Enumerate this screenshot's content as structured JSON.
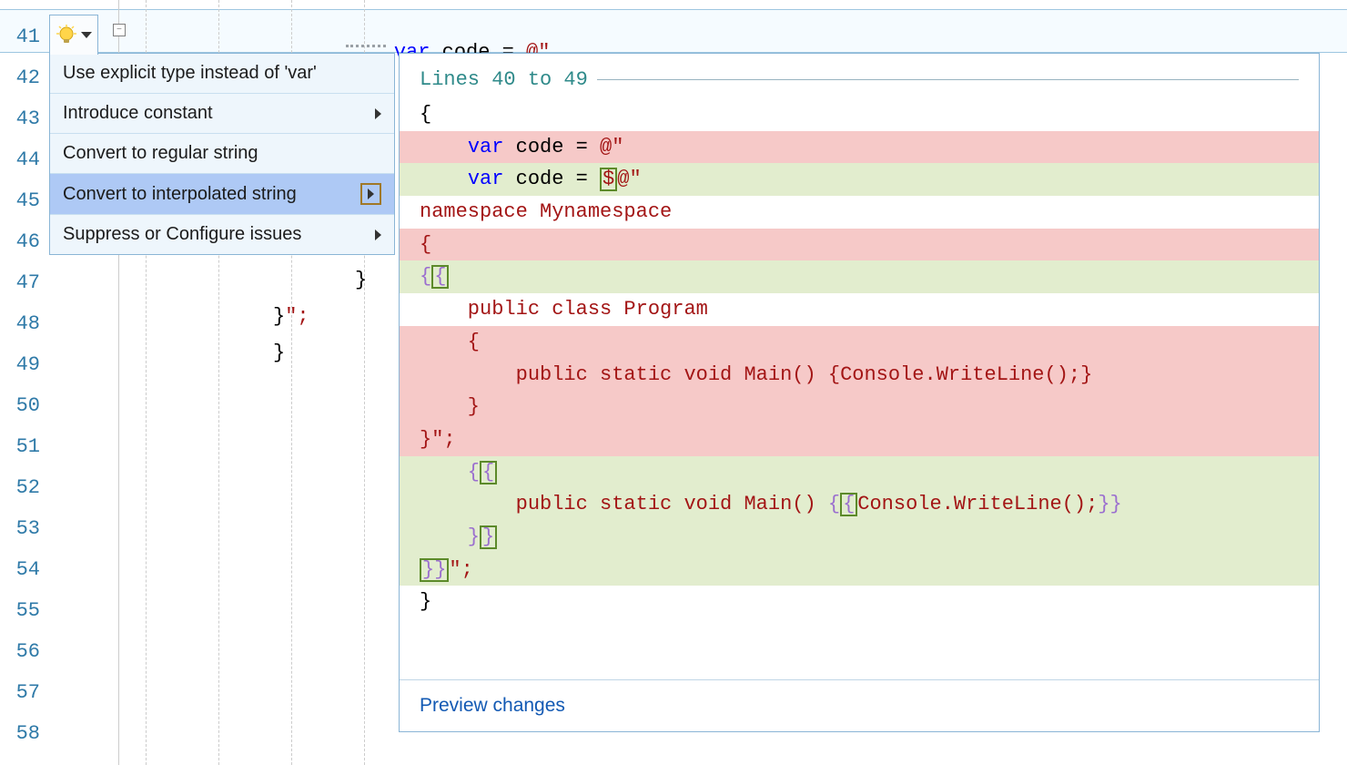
{
  "colors": {
    "line_number": "#2f7aa8",
    "keyword": "#0000ff",
    "string": "#a31515",
    "menu_bg": "#eef6fc",
    "menu_selected": "#aec9f5",
    "menu_border": "#8ab5d6",
    "diff_deleted_bg": "#f6c9c8",
    "diff_added_bg": "#e2edce",
    "added_box_border": "#5c8a2a",
    "brace_highlight": "#9b6fcf",
    "preview_link": "#1259b3",
    "header_teal": "#2f8a8a"
  },
  "editor": {
    "visible_lines": [
      41,
      42,
      43,
      44,
      45,
      46,
      47,
      48,
      49,
      50,
      51,
      52,
      53,
      54,
      55,
      56,
      57,
      58
    ],
    "current_line": 41,
    "line41": {
      "var": "var",
      "ident": " code = ",
      "str": "@\""
    },
    "line47": "}",
    "line48": "}\";",
    "line49": "}"
  },
  "menu": {
    "items": [
      {
        "label": "Use explicit type instead of 'var'",
        "submenu": false,
        "selected": false
      },
      {
        "label": "Introduce constant",
        "submenu": true,
        "selected": false
      },
      {
        "label": "Convert to regular string",
        "submenu": false,
        "selected": false
      },
      {
        "label": "Convert to interpolated string",
        "submenu": true,
        "selected": true
      },
      {
        "label": "Suppress or Configure issues",
        "submenu": true,
        "selected": false
      }
    ]
  },
  "preview": {
    "header": "Lines 40 to 49",
    "footer": "Preview changes",
    "lines": {
      "open_brace": "{",
      "del_var": "    var code = @\"",
      "add_var_pre": "    var code = ",
      "add_var_dollar": "$",
      "add_var_post": "@\"",
      "ns": "namespace Mynamespace",
      "del_brace": "{",
      "add_brace1": "{",
      "add_brace2": "{",
      "class_decl": "    public class Program",
      "del_block_open": "    {",
      "del_main": "        public static void Main() {Console.WriteLine();}",
      "del_block_close": "    }",
      "del_end": "}\";",
      "add_open1": "    {",
      "add_open2": "{",
      "add_main_pre": "        public static void Main() ",
      "add_main_o1": "{",
      "add_main_o2": "{",
      "add_main_body": "Console.WriteLine();",
      "add_main_c1": "}",
      "add_main_c2": "}",
      "add_close_inner1": "    }",
      "add_close_inner2": "}",
      "add_close_outer1": "}",
      "add_close_outer2": "}",
      "add_close_tail": "\";",
      "final_brace": "}"
    }
  }
}
